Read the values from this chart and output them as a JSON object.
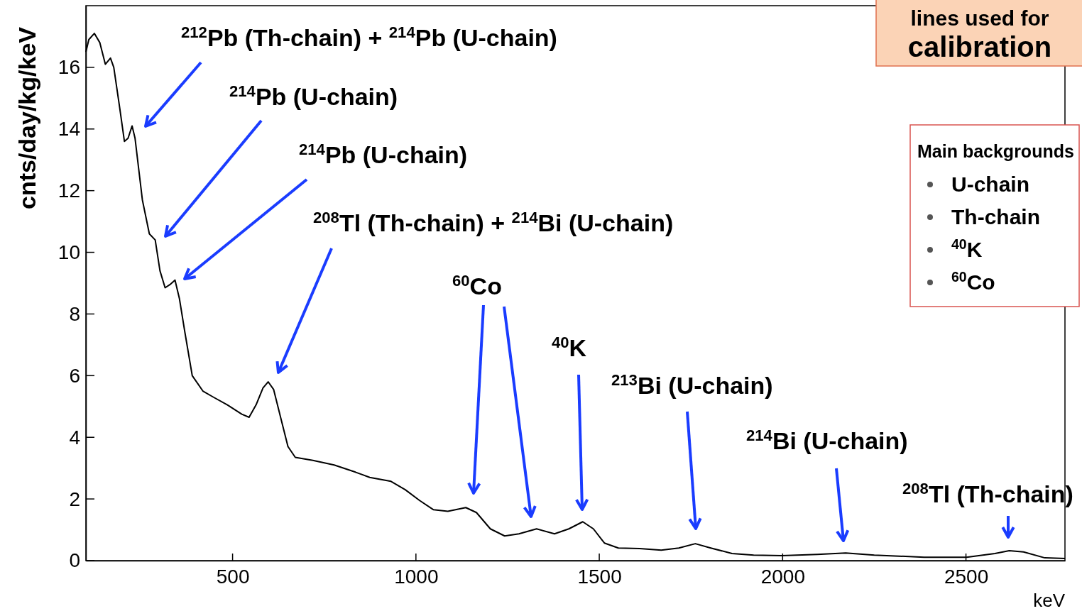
{
  "chart_data": {
    "type": "line",
    "xlabel": "keV",
    "ylabel": "cnts/day/kg/keV",
    "xlim": [
      100,
      2770
    ],
    "ylim": [
      0,
      18
    ],
    "xticks": [
      500,
      1000,
      1500,
      2000,
      2500
    ],
    "yticks": [
      0,
      2,
      4,
      6,
      8,
      10,
      12,
      14,
      16
    ],
    "grid": false,
    "series": [
      {
        "color": "#000000",
        "x": [
          100,
          108,
          123,
          138,
          153,
          167,
          176,
          192,
          205,
          215,
          226,
          234,
          254,
          273,
          289,
          302,
          316,
          331,
          343,
          355,
          370,
          390,
          419,
          448,
          486,
          525,
          545,
          564,
          583,
          597,
          612,
          632,
          651,
          671,
          719,
          777,
          835,
          874,
          932,
          971,
          1010,
          1048,
          1087,
          1136,
          1165,
          1203,
          1242,
          1281,
          1329,
          1378,
          1417,
          1455,
          1484,
          1514,
          1552,
          1610,
          1669,
          1717,
          1762,
          1804,
          1862,
          1921,
          1998,
          2095,
          2172,
          2250,
          2386,
          2502,
          2579,
          2618,
          2657,
          2715,
          2770
        ],
        "values": [
          16.5,
          16.9,
          17.1,
          16.8,
          16.1,
          16.3,
          16.0,
          14.7,
          13.6,
          13.7,
          14.1,
          13.7,
          11.7,
          10.6,
          10.4,
          9.4,
          8.85,
          8.97,
          9.1,
          8.5,
          7.4,
          6.0,
          5.5,
          5.3,
          5.05,
          4.75,
          4.65,
          5.05,
          5.6,
          5.8,
          5.55,
          4.6,
          3.7,
          3.35,
          3.25,
          3.1,
          2.87,
          2.7,
          2.57,
          2.3,
          1.95,
          1.65,
          1.6,
          1.72,
          1.56,
          1.03,
          0.8,
          0.87,
          1.03,
          0.87,
          1.03,
          1.26,
          1.03,
          0.57,
          0.41,
          0.39,
          0.34,
          0.41,
          0.55,
          0.41,
          0.23,
          0.18,
          0.16,
          0.2,
          0.25,
          0.18,
          0.11,
          0.11,
          0.23,
          0.32,
          0.28,
          0.09,
          0.07
        ]
      }
    ],
    "annotations": [
      "$^{212}$Pb (Th-chain) + $^{214}$Pb (U-chain)",
      "$^{214}$Pb (U-chain)",
      "$^{214}$Pb (U-chain)",
      "$^{208}$Tl (Th-chain) + $^{214}$Bi (U-chain)",
      "$^{60}$Co",
      "$^{40}$K",
      "$^{213}$Bi (U-chain)",
      "$^{214}$Bi (U-chain)",
      "$^{208}$Tl (Th-chain)",
      "lines used for calibration",
      "Main backgrounds",
      "U-chain",
      "Th-chain",
      "$^{40}$K",
      "$^{60}$Co"
    ]
  }
}
